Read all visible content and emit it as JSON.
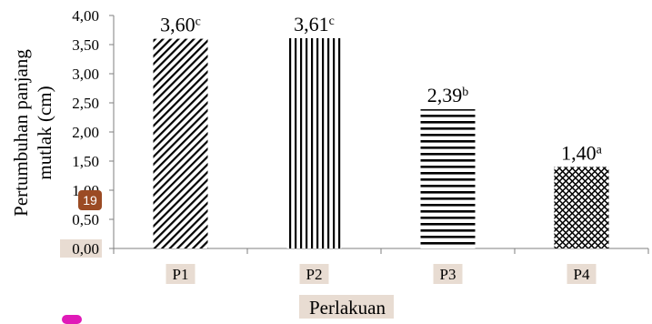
{
  "chart_data": {
    "type": "bar",
    "categories": [
      "P1",
      "P2",
      "P3",
      "P4"
    ],
    "values": [
      3.6,
      3.61,
      2.39,
      1.4
    ],
    "data_labels": [
      {
        "value": "3,60",
        "sup": "c"
      },
      {
        "value": "3,61",
        "sup": "c"
      },
      {
        "value": "2,39",
        "sup": "b"
      },
      {
        "value": "1,40",
        "sup": "a"
      }
    ],
    "patterns": [
      "diagonal-hatch",
      "vertical-lines",
      "horizontal-lines",
      "crosshatch"
    ],
    "xlabel": "Perlakuan",
    "ylabel_line1": "Pertumbuhan  panjang",
    "ylabel_line2": "mutlak  (cm)",
    "yticks": [
      "0,00",
      "0,50",
      "1,00",
      "1,50",
      "2,00",
      "2,50",
      "3,00",
      "3,50",
      "4,00"
    ],
    "ylim": [
      0,
      4
    ],
    "grid": false,
    "bar_color": "#000000"
  },
  "overlay": {
    "badge_number": "19"
  }
}
